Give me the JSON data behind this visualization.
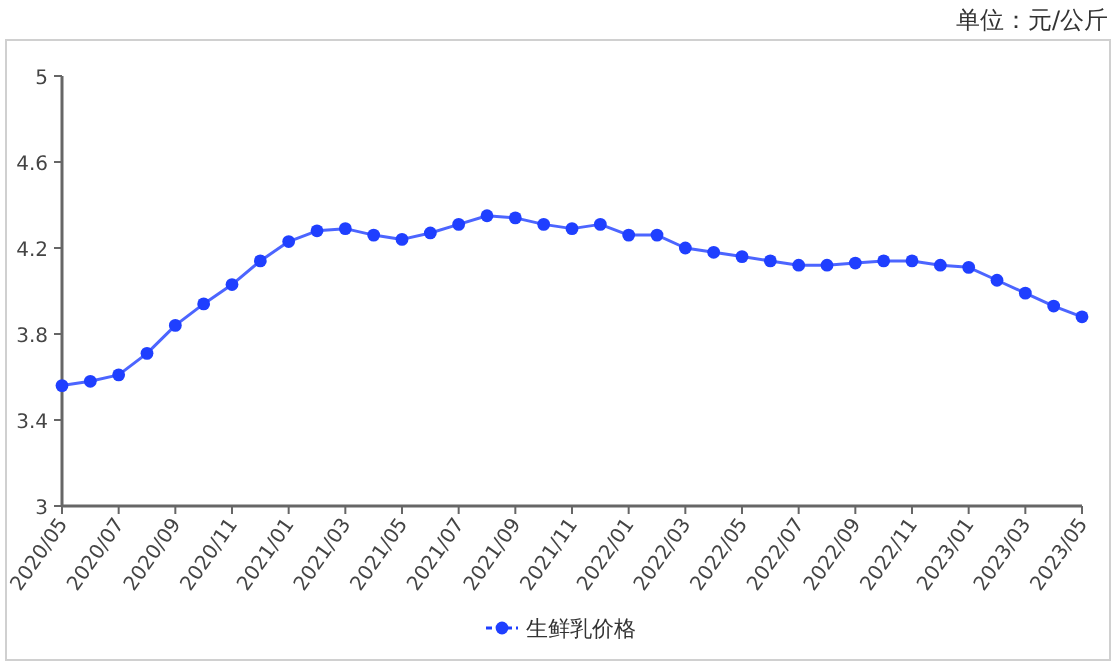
{
  "chart_data": {
    "type": "line",
    "annotations": [
      "单位：元/公斤"
    ],
    "categories": [
      "2020/05",
      null,
      "2020/07",
      null,
      "2020/09",
      null,
      "2020/11",
      null,
      "2021/01",
      null,
      "2021/03",
      null,
      "2021/05",
      null,
      "2021/07",
      null,
      "2021/09",
      null,
      "2021/11",
      null,
      "2022/01",
      null,
      "2022/03",
      null,
      "2022/05",
      null,
      "2022/07",
      null,
      "2022/09",
      null,
      "2022/11",
      null,
      "2023/01",
      null,
      "2023/03",
      null,
      "2023/05"
    ],
    "series": [
      {
        "name": "生鲜乳价格",
        "color": "#1f3fff",
        "values": [
          3.56,
          3.58,
          3.61,
          3.71,
          3.84,
          3.94,
          4.03,
          4.14,
          4.23,
          4.28,
          4.29,
          4.26,
          4.24,
          4.27,
          4.31,
          4.35,
          4.34,
          4.31,
          4.29,
          4.31,
          4.26,
          4.26,
          4.2,
          4.18,
          4.16,
          4.14,
          4.12,
          4.12,
          4.13,
          4.14,
          4.14,
          4.12,
          4.11,
          4.05,
          3.99,
          3.93,
          3.88
        ]
      }
    ],
    "ylim": [
      3,
      5
    ],
    "yticks": [
      3,
      3.4,
      3.8,
      4.2,
      4.6,
      5
    ],
    "legend": "bottom",
    "marker": "circle",
    "line_style": "solid"
  }
}
